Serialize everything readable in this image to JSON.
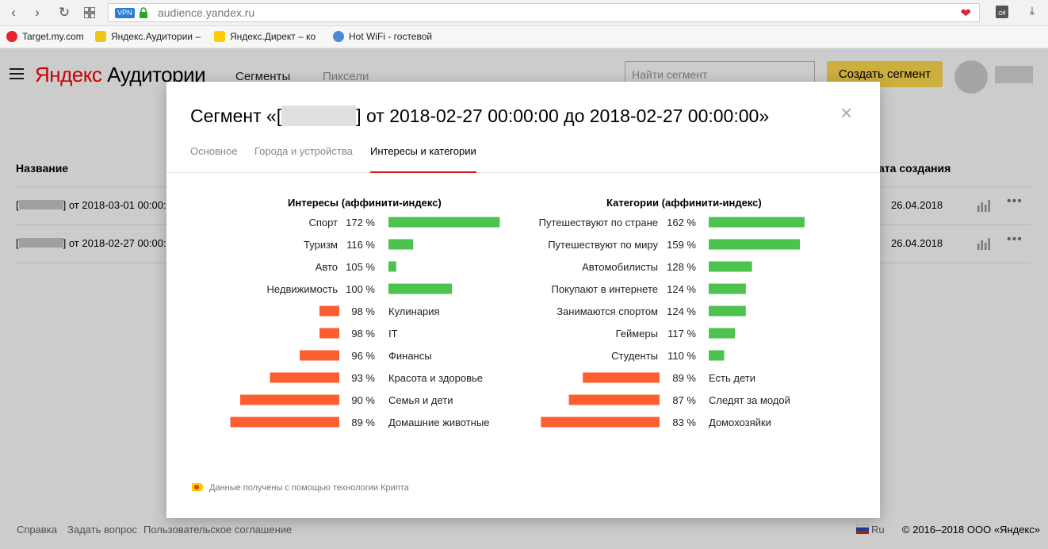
{
  "browser": {
    "vpn_label": "VPN",
    "url": "audience.yandex.ru",
    "off_badge": "Off",
    "bookmarks": [
      {
        "label": "Target.my.com"
      },
      {
        "label": "Яндекс.Аудитории –"
      },
      {
        "label": "Яндекс.Директ – ко"
      },
      {
        "label": "Hot WiFi - гостевой"
      }
    ]
  },
  "header": {
    "logo_brand": "Яндекс",
    "logo_product": "Аудитории",
    "nav": [
      "Сегменты",
      "Пиксели"
    ],
    "search_placeholder": "Найти сегмент",
    "create_button": "Создать сегмент"
  },
  "table": {
    "col_name": "Название",
    "col_date": "ата создания",
    "rows": [
      {
        "open": "[",
        "name_rest": "] от 2018-03-01 00:00:0",
        "date": "26.04.2018"
      },
      {
        "open": "[",
        "name_rest": "] от 2018-02-27 00:00:0",
        "date": "26.04.2018"
      }
    ],
    "more_glyph": "•••"
  },
  "footer": {
    "links": [
      "Справка",
      "Задать вопрос",
      "Пользовательское соглашение"
    ],
    "lang": "Ru",
    "copyright": "© 2016–2018 ООО «Яндекс»"
  },
  "modal": {
    "title_start": "Сегмент «[",
    "title_end": "] от 2018-02-27 00:00:00 до 2018-02-27 00:00:00»",
    "close": "×",
    "tabs": [
      {
        "label": "Основное",
        "active": false
      },
      {
        "label": "Города и устройства",
        "active": false
      },
      {
        "label": "Интересы и категории",
        "active": true
      }
    ],
    "credit": "Данные получены с помощью технологии Крипта"
  },
  "colors": {
    "positive": "#4ec24e",
    "negative": "#fe5d30",
    "accent_yellow": "#ffdb4d",
    "tab_underline": "#e01b1b"
  },
  "chart_data": [
    {
      "type": "bar",
      "title": "Интересы (аффинити-индекс)",
      "baseline": 100,
      "unit": "%",
      "categories": [
        "Спорт",
        "Туризм",
        "Авто",
        "Недвижимость",
        "Кулинария",
        "IT",
        "Финансы",
        "Красота и здоровье",
        "Семья и дети",
        "Домашние животные"
      ],
      "values": [
        172,
        116,
        105,
        100,
        98,
        98,
        96,
        93,
        90,
        89
      ]
    },
    {
      "type": "bar",
      "title": "Категории (аффинити-индекс)",
      "baseline": 100,
      "unit": "%",
      "categories": [
        "Путешествуют по стране",
        "Путешествуют по миру",
        "Автомобилисты",
        "Покупают в интернете",
        "Занимаются спортом",
        "Геймеры",
        "Студенты",
        "Есть дети",
        "Следят за модой",
        "Домохозяйки"
      ],
      "values": [
        162,
        159,
        128,
        124,
        124,
        117,
        110,
        89,
        87,
        83
      ]
    }
  ]
}
